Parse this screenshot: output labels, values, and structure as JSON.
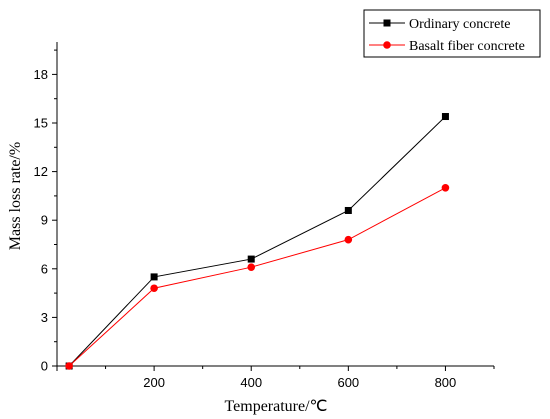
{
  "chart_data": {
    "type": "line",
    "xlabel": "Temperature/℃",
    "ylabel": "Mass loss rate/%",
    "xlim": [
      0,
      900
    ],
    "ylim": [
      0,
      20
    ],
    "xticks": [
      0,
      200,
      400,
      600,
      800
    ],
    "yticks": [
      0,
      3,
      6,
      9,
      12,
      15,
      18
    ],
    "grid": false,
    "legend_position": "top-right",
    "series": [
      {
        "name": "Ordinary concrete",
        "color": "#000000",
        "marker": "square",
        "x": [
          25,
          200,
          400,
          600,
          800
        ],
        "y": [
          0,
          5.5,
          6.6,
          9.6,
          15.4
        ]
      },
      {
        "name": "Basalt fiber concrete",
        "color": "#ff0000",
        "marker": "circle",
        "x": [
          25,
          200,
          400,
          600,
          800
        ],
        "y": [
          0,
          4.8,
          6.1,
          7.8,
          11.0
        ]
      }
    ]
  }
}
